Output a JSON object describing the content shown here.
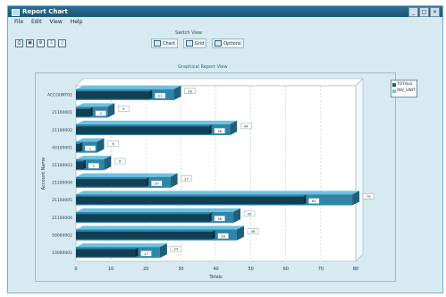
{
  "window": {
    "title": "Report Chart",
    "buttons": [
      "_",
      "□",
      "×"
    ]
  },
  "menu": [
    "File",
    "Edit",
    "View",
    "Help"
  ],
  "toolbar": {
    "icons": [
      "print-icon",
      "preview-icon",
      "settings-icon",
      "export-icon",
      "device-icon"
    ]
  },
  "switch_view": {
    "label": "Switch View",
    "buttons": [
      {
        "icon": "chart-icon",
        "label": "Chart"
      },
      {
        "icon": "grid-icon",
        "label": "Grid"
      },
      {
        "icon": "options-icon",
        "label": "Options"
      }
    ]
  },
  "chart_data": {
    "type": "bar",
    "orientation": "horizontal",
    "title": "Graphical Report View",
    "xlabel": "Totals",
    "ylabel": "Account Name",
    "xlim": [
      0,
      80
    ],
    "xticks": [
      0,
      10,
      20,
      30,
      40,
      50,
      60,
      70,
      80
    ],
    "categories": [
      "ACCOUNT01",
      "21100001",
      "21100002",
      "40100001",
      "21100003",
      "21100004",
      "21100005",
      "21100006",
      "50000002",
      "10000001"
    ],
    "series": [
      {
        "name": "TOTALS",
        "values": [
          21,
          4,
          38,
          1,
          2,
          20,
          65,
          38,
          39,
          17
        ]
      },
      {
        "name": "INV_UNIT",
        "values": [
          28,
          9,
          44,
          6,
          8,
          27,
          79,
          45,
          46,
          24
        ]
      }
    ],
    "data_labels": [
      {
        "v1": "21",
        "v2": "28"
      },
      {
        "v1": "4",
        "v2": "9"
      },
      {
        "v1": "38",
        "v2": "44"
      },
      {
        "v1": "1",
        "v2": "6"
      },
      {
        "v1": "2",
        "v2": "8"
      },
      {
        "v1": "20",
        "v2": "27"
      },
      {
        "v1": "65",
        "v2": "79"
      },
      {
        "v1": "38",
        "v2": "45"
      },
      {
        "v1": "39",
        "v2": "46"
      },
      {
        "v1": "17",
        "v2": "24"
      }
    ],
    "legend": [
      "TOTALS",
      "INV_UNIT"
    ],
    "colors": {
      "dark": "#1f5f7a",
      "mid": "#2d86a8",
      "light": "#6cc1e1",
      "accent": "#114055"
    }
  }
}
